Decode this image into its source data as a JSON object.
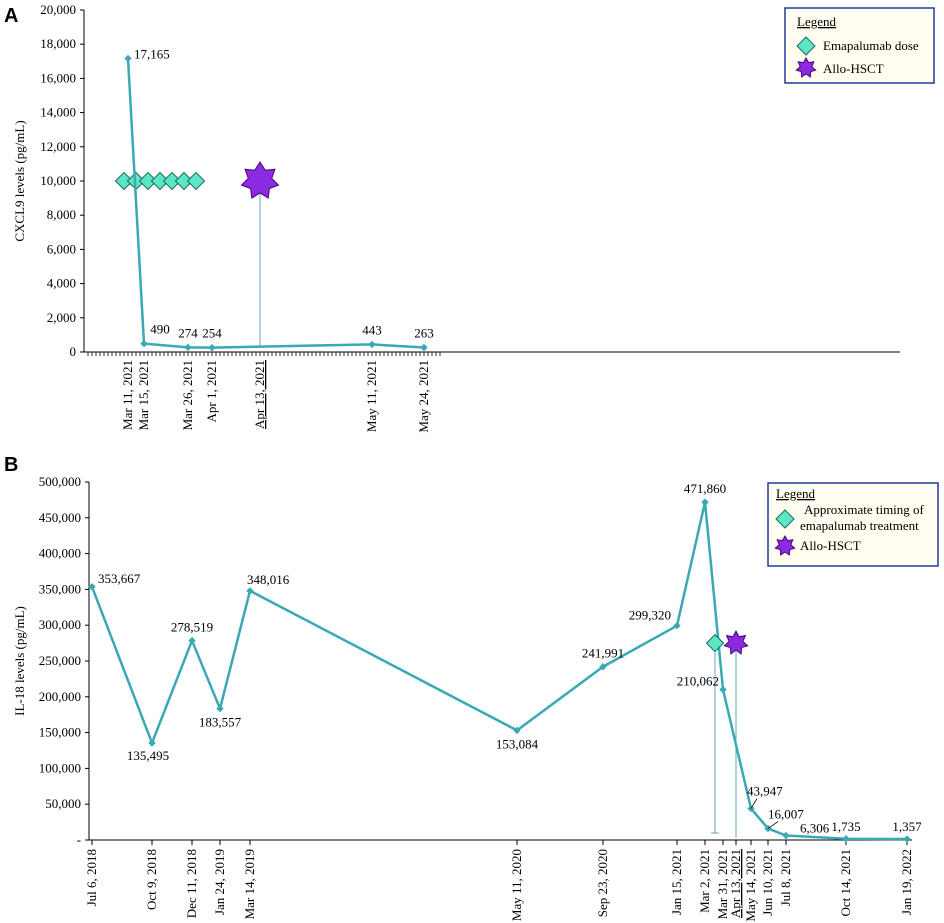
{
  "chart_data": [
    {
      "panel": "A",
      "type": "line",
      "ylabel": "CXCL9 levels (pg/mL)",
      "ylim": [
        0,
        20000
      ],
      "yticks": [
        0,
        2000,
        4000,
        6000,
        8000,
        10000,
        12000,
        14000,
        16000,
        18000,
        20000
      ],
      "ytick_labels": [
        "0",
        "2,000",
        "4,000",
        "6,000",
        "8,000",
        "10,000",
        "12,000",
        "14,000",
        "16,000",
        "18,000",
        "20,000"
      ],
      "x_start": "Mar 1, 2021",
      "x_end": "May 29, 2021",
      "dates": [
        "2021-03-11",
        "2021-03-15",
        "2021-03-26",
        "2021-04-01",
        "2021-05-11",
        "2021-05-24"
      ],
      "xtick_labels": [
        "Mar 11, 2021",
        "Mar 15, 2021",
        "Mar 26, 2021",
        "Apr 1, 2021",
        "May 11, 2021",
        "May 24, 2021"
      ],
      "values": [
        17165,
        490,
        274,
        254,
        443,
        263
      ],
      "value_labels": [
        "17,165",
        "490",
        "274",
        "254",
        "443",
        "263"
      ],
      "line_color": "#3aa9b4",
      "emapalumab_doses": {
        "dates": [
          "2021-03-10",
          "2021-03-13",
          "2021-03-16",
          "2021-03-19",
          "2021-03-22",
          "2021-03-25",
          "2021-03-28"
        ],
        "y": 10000,
        "color": "#5ce6c3"
      },
      "allo_hsct": {
        "date": "2021-04-13",
        "label": "Apr 13, 2021",
        "y": 10000,
        "color": "#8a2be2",
        "label_color": "#9932cc"
      },
      "legend": {
        "title": "Legend",
        "items": [
          "Emapalumab dose",
          "Allo-HSCT"
        ]
      }
    },
    {
      "panel": "B",
      "type": "line",
      "ylabel": "IL-18 levels (pg/mL)",
      "ylim": [
        0,
        500000
      ],
      "yticks": [
        0,
        50000,
        100000,
        150000,
        200000,
        250000,
        300000,
        350000,
        400000,
        450000,
        500000
      ],
      "ytick_labels": [
        "-",
        "50,000",
        "100,000",
        "150,000",
        "200,000",
        "250,000",
        "300,000",
        "350,000",
        "400,000",
        "450,000",
        "500,000"
      ],
      "xtick_labels": [
        "Jul 6, 2018",
        "Oct 9, 2018",
        "Dec 11, 2018",
        "Jan 24, 2019",
        "Mar 14, 2019",
        "May 11, 2020",
        "Sep 23, 2020",
        "Jan 15, 2021",
        "Mar 2, 2021",
        "Mar 31, 2021",
        "Apr 13, 2021",
        "May 14, 2021",
        "Jun 10, 2021",
        "Jul 8, 2021",
        "Oct 14, 2021",
        "Jan 19, 2022"
      ],
      "point_ticks": [
        0,
        1,
        2,
        3,
        4,
        5,
        6,
        7,
        8,
        9,
        11,
        12,
        13,
        14,
        15
      ],
      "values": [
        353667,
        135495,
        278519,
        183557,
        348016,
        153084,
        241991,
        299320,
        471860,
        210062,
        43947,
        16007,
        6306,
        1735,
        1357
      ],
      "value_labels": [
        "353,667",
        "135,495",
        "278,519",
        "183,557",
        "348,016",
        "153,084",
        "241,991",
        "299,320",
        "471,860",
        "210,062",
        "43,947",
        "16,007",
        "6,306",
        "1,735",
        "1,357"
      ],
      "line_color": "#3aa9b4",
      "emapalumab_treatment": {
        "y": 275000,
        "color": "#5ce6c3"
      },
      "allo_hsct": {
        "tick_index": 10,
        "y": 275000,
        "color": "#8a2be2",
        "label_color": "#9932cc"
      },
      "legend": {
        "title": "Legend",
        "items": [
          "Approximate timing of",
          "emapalumab treatment",
          "Allo-HSCT"
        ]
      }
    }
  ]
}
